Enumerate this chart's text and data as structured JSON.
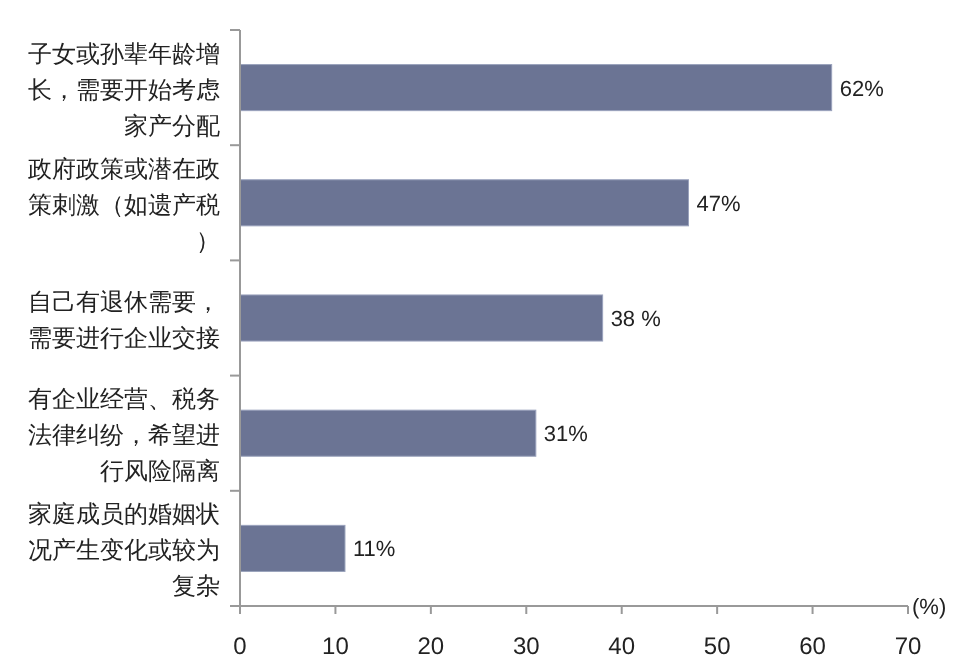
{
  "chart_data": {
    "type": "bar",
    "orientation": "horizontal",
    "categories": [
      "子女或孙辈年龄增长，需要开始考虑家产分配",
      "政府政策或潜在政策刺激（如遗产税）",
      "自己有退休需要，需要进行企业交接",
      "有企业经营、税务法律纠纷，希望进行风险隔离",
      "家庭成员的婚姻状况产生变化或较为复杂"
    ],
    "values": [
      62,
      47,
      38,
      31,
      11
    ],
    "value_labels": [
      "62%",
      "47%",
      "38 %",
      "31%",
      "11%"
    ],
    "color": "#6b7494",
    "xlim": [
      0,
      70
    ],
    "xticks": [
      0,
      10,
      20,
      30,
      40,
      50,
      60,
      70
    ],
    "xlabel": "(%)",
    "grid": false
  }
}
